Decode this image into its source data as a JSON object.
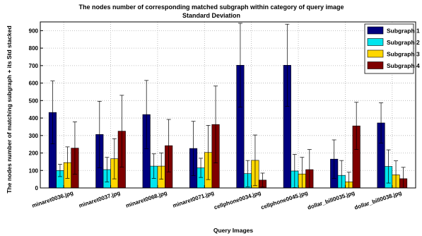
{
  "chart_data": {
    "type": "bar",
    "title": "The nodes number of corresponding matched subgraph within category of query image",
    "subtitle": "Standard Deviation",
    "xlabel": "Query Images",
    "ylabel": "The nodes number of matching subgraph + its Std stacked",
    "ylim": [
      0,
      950
    ],
    "yticks": [
      0,
      100,
      200,
      300,
      400,
      500,
      600,
      700,
      800,
      900
    ],
    "grid": true,
    "legend_position": "top-right",
    "categories": [
      "minaret0036.jpg",
      "minaret0037.jpg",
      "minaret0068.jpg",
      "minaret0071.jpg",
      "cellphone0034.jpg",
      "cellphone0045.jpg",
      "dollar_bill0035.jpg",
      "dollar_bill0038.jpg"
    ],
    "series": [
      {
        "name": "Subgraph 1",
        "color": "#00007f",
        "values": [
          432,
          306,
          420,
          226,
          702,
          702,
          165,
          372
        ],
        "std": [
          180,
          190,
          195,
          155,
          240,
          235,
          110,
          115
        ]
      },
      {
        "name": "Subgraph 2",
        "color": "#00e5ee",
        "values": [
          100,
          105,
          125,
          115,
          82,
          97,
          72,
          123
        ],
        "std": [
          35,
          70,
          70,
          55,
          75,
          95,
          85,
          95
        ]
      },
      {
        "name": "Subgraph 3",
        "color": "#ffd700",
        "values": [
          145,
          167,
          125,
          203,
          158,
          80,
          35,
          75
        ],
        "std": [
          90,
          115,
          75,
          155,
          145,
          95,
          55,
          80
        ]
      },
      {
        "name": "Subgraph 4",
        "color": "#7f0000",
        "values": [
          228,
          325,
          242,
          363,
          45,
          105,
          355,
          53
        ],
        "std": [
          150,
          205,
          150,
          220,
          40,
          115,
          135,
          65
        ]
      }
    ]
  }
}
